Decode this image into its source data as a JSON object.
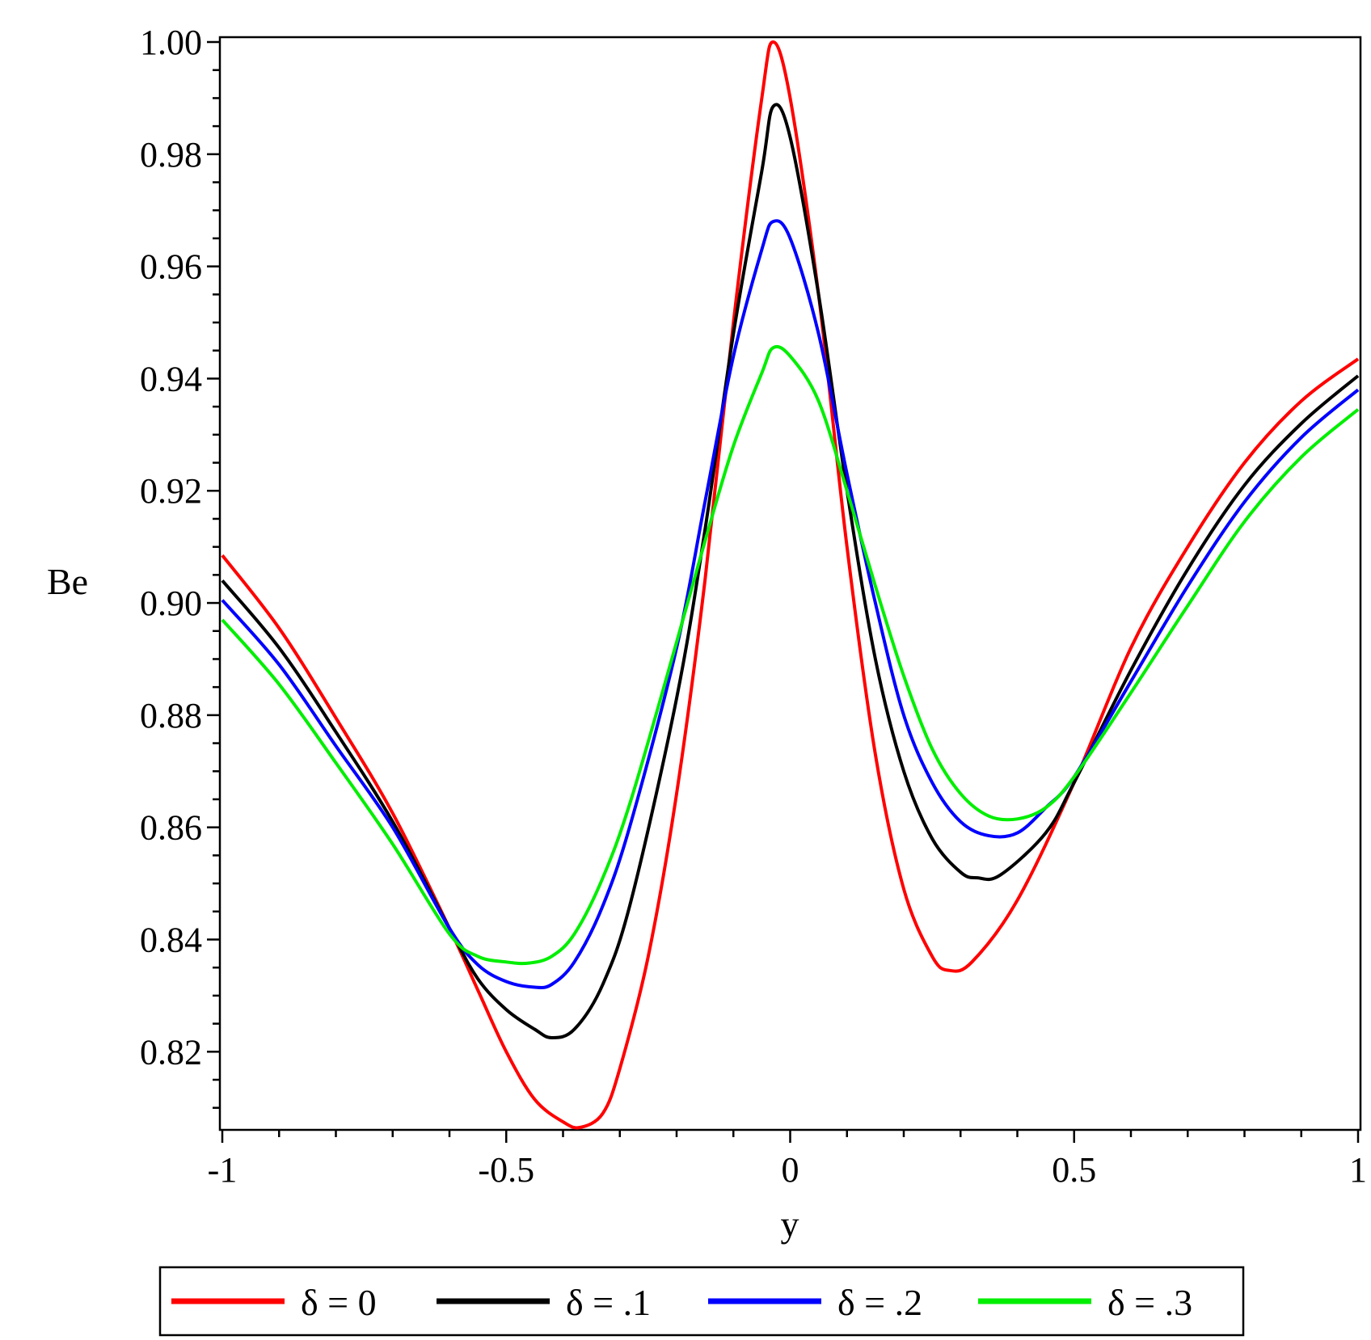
{
  "chart_data": {
    "type": "line",
    "title": "",
    "xlabel": "y",
    "ylabel": "Be",
    "xlim": [
      -1,
      1
    ],
    "ylim": [
      0.8065,
      1.0
    ],
    "x_ticks": [
      -1,
      -0.5,
      0,
      0.5,
      1
    ],
    "x_tick_labels": [
      "-1",
      "-0.5",
      "0",
      "0.5",
      "1"
    ],
    "y_ticks": [
      0.82,
      0.84,
      0.86,
      0.88,
      0.9,
      0.92,
      0.94,
      0.96,
      0.98,
      1.0
    ],
    "y_tick_labels": [
      "0.82",
      "0.84",
      "0.86",
      "0.88",
      "0.90",
      "0.92",
      "0.94",
      "0.96",
      "0.98",
      "1.00"
    ],
    "grid": false,
    "legend_position": "bottom",
    "series": [
      {
        "name": "δ = 0",
        "color": "#ff0000",
        "points": [
          [
            -1.0,
            0.9085
          ],
          [
            -0.9,
            0.8955
          ],
          [
            -0.8,
            0.8795
          ],
          [
            -0.7,
            0.8625
          ],
          [
            -0.6,
            0.842
          ],
          [
            -0.55,
            0.831
          ],
          [
            -0.5,
            0.82
          ],
          [
            -0.45,
            0.8115
          ],
          [
            -0.4,
            0.8075
          ],
          [
            -0.37,
            0.8065
          ],
          [
            -0.33,
            0.809
          ],
          [
            -0.3,
            0.817
          ],
          [
            -0.25,
            0.837
          ],
          [
            -0.2,
            0.866
          ],
          [
            -0.15,
            0.904
          ],
          [
            -0.1,
            0.95
          ],
          [
            -0.05,
            0.99
          ],
          [
            -0.03,
            1.0
          ],
          [
            0.0,
            0.99
          ],
          [
            0.05,
            0.955
          ],
          [
            0.1,
            0.91
          ],
          [
            0.15,
            0.873
          ],
          [
            0.2,
            0.849
          ],
          [
            0.25,
            0.837
          ],
          [
            0.28,
            0.8345
          ],
          [
            0.32,
            0.836
          ],
          [
            0.4,
            0.847
          ],
          [
            0.5,
            0.868
          ],
          [
            0.6,
            0.892
          ],
          [
            0.7,
            0.91
          ],
          [
            0.8,
            0.925
          ],
          [
            0.9,
            0.936
          ],
          [
            1.0,
            0.9435
          ]
        ]
      },
      {
        "name": "δ = .1",
        "color": "#000000",
        "points": [
          [
            -1.0,
            0.904
          ],
          [
            -0.9,
            0.892
          ],
          [
            -0.8,
            0.877
          ],
          [
            -0.7,
            0.861
          ],
          [
            -0.6,
            0.842
          ],
          [
            -0.55,
            0.833
          ],
          [
            -0.5,
            0.8275
          ],
          [
            -0.45,
            0.824
          ],
          [
            -0.42,
            0.8225
          ],
          [
            -0.38,
            0.824
          ],
          [
            -0.33,
            0.832
          ],
          [
            -0.28,
            0.847
          ],
          [
            -0.2,
            0.883
          ],
          [
            -0.15,
            0.913
          ],
          [
            -0.1,
            0.948
          ],
          [
            -0.05,
            0.977
          ],
          [
            -0.03,
            0.9885
          ],
          [
            0.0,
            0.983
          ],
          [
            0.05,
            0.955
          ],
          [
            0.1,
            0.92
          ],
          [
            0.15,
            0.89
          ],
          [
            0.2,
            0.87
          ],
          [
            0.25,
            0.858
          ],
          [
            0.3,
            0.852
          ],
          [
            0.33,
            0.851
          ],
          [
            0.37,
            0.8515
          ],
          [
            0.45,
            0.859
          ],
          [
            0.5,
            0.868
          ],
          [
            0.6,
            0.888
          ],
          [
            0.7,
            0.906
          ],
          [
            0.8,
            0.921
          ],
          [
            0.9,
            0.932
          ],
          [
            1.0,
            0.9405
          ]
        ]
      },
      {
        "name": "δ = .2",
        "color": "#0000ff",
        "points": [
          [
            -1.0,
            0.9005
          ],
          [
            -0.9,
            0.889
          ],
          [
            -0.8,
            0.8745
          ],
          [
            -0.7,
            0.86
          ],
          [
            -0.6,
            0.842
          ],
          [
            -0.55,
            0.8355
          ],
          [
            -0.5,
            0.8325
          ],
          [
            -0.45,
            0.8315
          ],
          [
            -0.42,
            0.832
          ],
          [
            -0.38,
            0.836
          ],
          [
            -0.33,
            0.846
          ],
          [
            -0.28,
            0.861
          ],
          [
            -0.2,
            0.892
          ],
          [
            -0.15,
            0.918
          ],
          [
            -0.1,
            0.944
          ],
          [
            -0.05,
            0.963
          ],
          [
            -0.03,
            0.968
          ],
          [
            0.0,
            0.965
          ],
          [
            0.05,
            0.948
          ],
          [
            0.1,
            0.923
          ],
          [
            0.15,
            0.9
          ],
          [
            0.2,
            0.88
          ],
          [
            0.25,
            0.868
          ],
          [
            0.3,
            0.861
          ],
          [
            0.35,
            0.8585
          ],
          [
            0.4,
            0.859
          ],
          [
            0.45,
            0.8635
          ],
          [
            0.5,
            0.869
          ],
          [
            0.6,
            0.886
          ],
          [
            0.7,
            0.903
          ],
          [
            0.8,
            0.918
          ],
          [
            0.9,
            0.9295
          ],
          [
            1.0,
            0.938
          ]
        ]
      },
      {
        "name": "δ = .3",
        "color": "#00ee00",
        "points": [
          [
            -1.0,
            0.897
          ],
          [
            -0.9,
            0.8855
          ],
          [
            -0.8,
            0.8715
          ],
          [
            -0.7,
            0.857
          ],
          [
            -0.6,
            0.841
          ],
          [
            -0.55,
            0.837
          ],
          [
            -0.5,
            0.836
          ],
          [
            -0.46,
            0.8358
          ],
          [
            -0.42,
            0.837
          ],
          [
            -0.38,
            0.841
          ],
          [
            -0.33,
            0.851
          ],
          [
            -0.28,
            0.865
          ],
          [
            -0.2,
            0.893
          ],
          [
            -0.15,
            0.911
          ],
          [
            -0.1,
            0.928
          ],
          [
            -0.05,
            0.941
          ],
          [
            -0.03,
            0.9455
          ],
          [
            0.0,
            0.944
          ],
          [
            0.05,
            0.936
          ],
          [
            0.1,
            0.92
          ],
          [
            0.15,
            0.903
          ],
          [
            0.2,
            0.887
          ],
          [
            0.25,
            0.874
          ],
          [
            0.3,
            0.866
          ],
          [
            0.35,
            0.862
          ],
          [
            0.4,
            0.8615
          ],
          [
            0.45,
            0.8635
          ],
          [
            0.5,
            0.869
          ],
          [
            0.6,
            0.884
          ],
          [
            0.7,
            0.8995
          ],
          [
            0.8,
            0.9145
          ],
          [
            0.9,
            0.926
          ],
          [
            1.0,
            0.9345
          ]
        ]
      }
    ]
  }
}
